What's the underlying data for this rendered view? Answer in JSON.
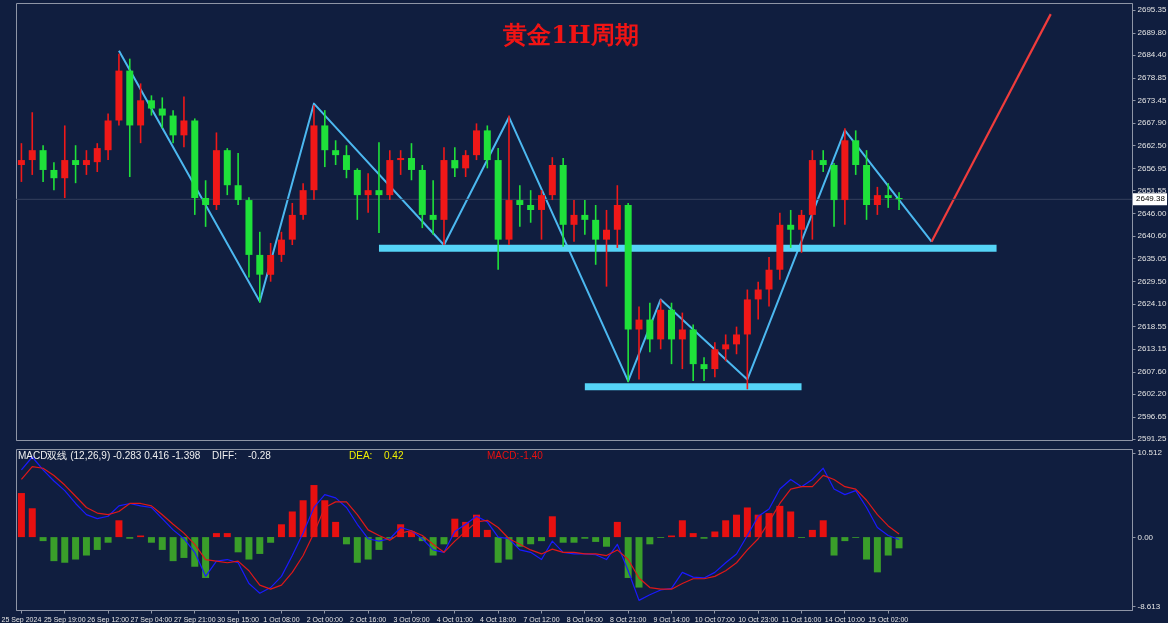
{
  "chart_data": [
    {
      "type": "candlestick",
      "title": "黄金1H周期",
      "categories": [
        null,
        null,
        null,
        null,
        null,
        null,
        null,
        null,
        null,
        null,
        null,
        null,
        null,
        null,
        null,
        null,
        null,
        null,
        null,
        null,
        null,
        null,
        null,
        null,
        null,
        null,
        null,
        null,
        null,
        null,
        null,
        null,
        null,
        null,
        null,
        null,
        null,
        null,
        null,
        null,
        null,
        null,
        null,
        null,
        null,
        null,
        null,
        null,
        null,
        null,
        null,
        null,
        null,
        null,
        null,
        null,
        null,
        null,
        null,
        null,
        null,
        null,
        null,
        null,
        null,
        null,
        null,
        null,
        null,
        null,
        null,
        null,
        null,
        null,
        null,
        null,
        null,
        null,
        null,
        null,
        null,
        null,
        null,
        null,
        null,
        null,
        null,
        null,
        null,
        null,
        null,
        null,
        null,
        null,
        null,
        null,
        null,
        null,
        null,
        null,
        null,
        null,
        null
      ],
      "ohlc": [
        [
          2657.7,
          2663.0,
          2653.6,
          2658.9
        ],
        [
          2658.9,
          2670.5,
          2655.3,
          2661.3
        ],
        [
          2661.3,
          2662.5,
          2653.6,
          2656.5
        ],
        [
          2656.5,
          2658.4,
          2651.6,
          2654.5
        ],
        [
          2654.5,
          2667.3,
          2649.7,
          2658.9
        ],
        [
          2658.9,
          2662.5,
          2653.3,
          2657.7
        ],
        [
          2657.7,
          2661.3,
          2655.3,
          2658.9
        ],
        [
          2658.4,
          2663.0,
          2656.0,
          2661.8
        ],
        [
          2661.3,
          2670.2,
          2658.9,
          2668.5
        ],
        [
          2668.5,
          2684.7,
          2667.3,
          2680.6
        ],
        [
          2680.6,
          2683.5,
          2654.8,
          2667.3
        ],
        [
          2667.3,
          2677.5,
          2663.0,
          2673.4
        ],
        [
          2673.4,
          2674.6,
          2669.7,
          2671.4
        ],
        [
          2671.4,
          2674.1,
          2666.6,
          2669.7
        ],
        [
          2669.7,
          2671.0,
          2663.0,
          2664.9
        ],
        [
          2664.9,
          2674.3,
          2662.0,
          2668.5
        ],
        [
          2668.5,
          2669.0,
          2645.6,
          2649.7
        ],
        [
          2649.7,
          2654.0,
          2642.7,
          2648.0
        ],
        [
          2648.0,
          2665.6,
          2646.8,
          2661.3
        ],
        [
          2661.3,
          2661.8,
          2650.4,
          2652.8
        ],
        [
          2652.8,
          2660.6,
          2648.0,
          2649.2
        ],
        [
          2649.2,
          2649.9,
          2630.4,
          2635.9
        ],
        [
          2635.9,
          2641.5,
          2624.3,
          2631.1
        ],
        [
          2631.1,
          2638.8,
          2629.4,
          2635.9
        ],
        [
          2635.9,
          2641.5,
          2634.2,
          2639.6
        ],
        [
          2639.6,
          2648.5,
          2638.3,
          2645.6
        ],
        [
          2645.6,
          2653.3,
          2644.4,
          2651.6
        ],
        [
          2651.6,
          2672.2,
          2649.2,
          2667.3
        ],
        [
          2667.3,
          2671.0,
          2657.2,
          2661.3
        ],
        [
          2661.3,
          2663.7,
          2657.7,
          2660.1
        ],
        [
          2660.1,
          2662.5,
          2654.5,
          2656.5
        ],
        [
          2656.5,
          2656.9,
          2644.4,
          2650.4
        ],
        [
          2650.4,
          2655.7,
          2646.1,
          2651.6
        ],
        [
          2651.6,
          2663.2,
          2641.2,
          2650.4
        ],
        [
          2650.4,
          2661.3,
          2649.2,
          2658.9
        ],
        [
          2658.9,
          2661.3,
          2655.3,
          2659.4
        ],
        [
          2659.4,
          2663.0,
          2654.0,
          2656.5
        ],
        [
          2656.5,
          2657.7,
          2642.4,
          2645.6
        ],
        [
          2645.6,
          2654.0,
          2640.8,
          2644.4
        ],
        [
          2644.4,
          2662.0,
          2638.3,
          2658.9
        ],
        [
          2658.9,
          2662.0,
          2654.8,
          2656.9
        ],
        [
          2656.9,
          2661.3,
          2654.8,
          2660.1
        ],
        [
          2660.1,
          2667.8,
          2658.9,
          2666.1
        ],
        [
          2666.1,
          2667.3,
          2656.9,
          2658.9
        ],
        [
          2658.9,
          2661.8,
          2632.3,
          2639.6
        ],
        [
          2639.6,
          2669.7,
          2638.3,
          2649.2
        ],
        [
          2649.2,
          2652.8,
          2642.7,
          2648.0
        ],
        [
          2648.0,
          2651.6,
          2643.7,
          2646.8
        ],
        [
          2646.8,
          2651.6,
          2639.6,
          2650.4
        ],
        [
          2650.4,
          2659.6,
          2649.2,
          2657.7
        ],
        [
          2657.7,
          2659.4,
          2637.9,
          2643.2
        ],
        [
          2643.2,
          2649.2,
          2639.1,
          2645.6
        ],
        [
          2645.6,
          2649.2,
          2640.8,
          2644.4
        ],
        [
          2644.4,
          2648.0,
          2633.5,
          2639.6
        ],
        [
          2639.6,
          2646.8,
          2628.2,
          2642.0
        ],
        [
          2642.0,
          2652.8,
          2637.6,
          2648.0
        ],
        [
          2648.0,
          2648.5,
          2605.0,
          2617.8
        ],
        [
          2617.8,
          2623.4,
          2605.7,
          2620.2
        ],
        [
          2620.2,
          2624.3,
          2612.3,
          2615.4
        ],
        [
          2615.4,
          2625.1,
          2613.0,
          2622.6
        ],
        [
          2622.6,
          2624.3,
          2609.4,
          2615.4
        ],
        [
          2615.4,
          2621.9,
          2608.2,
          2617.8
        ],
        [
          2617.8,
          2619.0,
          2605.3,
          2609.4
        ],
        [
          2609.4,
          2611.1,
          2605.3,
          2608.2
        ],
        [
          2608.2,
          2614.7,
          2606.2,
          2613.0
        ],
        [
          2613.0,
          2616.6,
          2610.1,
          2614.2
        ],
        [
          2614.2,
          2618.5,
          2611.8,
          2616.6
        ],
        [
          2616.6,
          2627.5,
          2603.3,
          2625.1
        ],
        [
          2625.1,
          2629.4,
          2620.2,
          2627.5
        ],
        [
          2627.5,
          2635.4,
          2623.4,
          2632.3
        ],
        [
          2632.3,
          2646.1,
          2629.9,
          2643.2
        ],
        [
          2643.2,
          2646.8,
          2637.6,
          2642.0
        ],
        [
          2642.0,
          2646.8,
          2636.4,
          2645.6
        ],
        [
          2645.6,
          2661.3,
          2639.6,
          2658.9
        ],
        [
          2658.9,
          2661.3,
          2656.0,
          2657.7
        ],
        [
          2657.7,
          2658.2,
          2642.7,
          2649.2
        ],
        [
          2649.2,
          2666.6,
          2643.2,
          2663.7
        ],
        [
          2663.7,
          2666.1,
          2655.3,
          2657.7
        ],
        [
          2657.7,
          2661.3,
          2644.4,
          2648.0
        ],
        [
          2648.0,
          2652.4,
          2645.6,
          2650.4
        ],
        [
          2650.4,
          2653.3,
          2647.3,
          2649.7
        ],
        [
          2649.7,
          2651.1,
          2646.8,
          2649.4
        ],
        null,
        null,
        null,
        null,
        null,
        null,
        null,
        null,
        null,
        null,
        null,
        null,
        null,
        null,
        null,
        null,
        null,
        null,
        null,
        null,
        null
      ],
      "colors": [
        "#f01818",
        "#f01818",
        "#1fe13a",
        "#1fe13a",
        "#f01818",
        "#1fe13a",
        "#f01818",
        "#f01818",
        "#f01818",
        "#f01818",
        "#1fe13a",
        "#f01818",
        "#1fe13a",
        "#1fe13a",
        "#1fe13a",
        "#f01818",
        "#1fe13a",
        "#1fe13a",
        "#f01818",
        "#1fe13a",
        "#1fe13a",
        "#1fe13a",
        "#1fe13a",
        "#f01818",
        "#f01818",
        "#f01818",
        "#f01818",
        "#f01818",
        "#1fe13a",
        "#1fe13a",
        "#1fe13a",
        "#1fe13a",
        "#f01818",
        "#1fe13a",
        "#f01818",
        "#f01818",
        "#1fe13a",
        "#1fe13a",
        "#1fe13a",
        "#f01818",
        "#1fe13a",
        "#f01818",
        "#f01818",
        "#1fe13a",
        "#1fe13a",
        "#f01818",
        "#1fe13a",
        "#1fe13a",
        "#f01818",
        "#f01818",
        "#1fe13a",
        "#f01818",
        "#1fe13a",
        "#1fe13a",
        "#f01818",
        "#f01818",
        "#1fe13a",
        "#f01818",
        "#1fe13a",
        "#f01818",
        "#1fe13a",
        "#f01818",
        "#1fe13a",
        "#1fe13a",
        "#f01818",
        "#f01818",
        "#f01818",
        "#f01818",
        "#f01818",
        "#f01818",
        "#f01818",
        "#1fe13a",
        "#f01818",
        "#f01818",
        "#1fe13a",
        "#1fe13a",
        "#f01818",
        "#1fe13a",
        "#1fe13a",
        "#f01818",
        "#1fe13a",
        "#1fe13a",
        null,
        null,
        null,
        null,
        null,
        null,
        null,
        null,
        null,
        null,
        null,
        null,
        null,
        null,
        null,
        null,
        null,
        null,
        null,
        null,
        null
      ],
      "series": [
        {
          "type": "line",
          "color": "#4cb8f0",
          "values": [
            null,
            null,
            null,
            null,
            null,
            null,
            null,
            null,
            null,
            2685.4,
            null,
            null,
            null,
            null,
            null,
            null,
            null,
            null,
            null,
            null,
            null,
            null,
            2624.6,
            null,
            null,
            null,
            null,
            2672.6,
            null,
            null,
            null,
            null,
            null,
            null,
            null,
            null,
            null,
            null,
            null,
            2638.3,
            null,
            null,
            null,
            null,
            null,
            2669.3,
            null,
            null,
            null,
            null,
            null,
            null,
            null,
            null,
            null,
            null,
            2605.3,
            null,
            null,
            2625.1,
            null,
            null,
            null,
            null,
            null,
            null,
            null,
            2605.7,
            null,
            null,
            null,
            null,
            null,
            null,
            null,
            null,
            2666.1,
            null,
            null,
            null,
            null,
            null,
            null,
            null,
            2639.1,
            null,
            null,
            null,
            null,
            null,
            null,
            null,
            null,
            null,
            null,
            null,
            null,
            null,
            null,
            null,
            null,
            null,
            null
          ]
        },
        {
          "type": "line",
          "color": "#55d4f7",
          "values": [
            null,
            null,
            null,
            null,
            null,
            null,
            null,
            null,
            null,
            null,
            null,
            null,
            null,
            null,
            null,
            null,
            null,
            null,
            null,
            null,
            null,
            null,
            null,
            null,
            null,
            null,
            null,
            null,
            null,
            null,
            null,
            null,
            null,
            2637.5,
            2637.5,
            2637.5,
            2637.5,
            2637.5,
            2637.5,
            2637.5,
            2637.5,
            2637.5,
            2637.5,
            2637.5,
            2637.5,
            2637.5,
            2637.5,
            2637.5,
            2637.5,
            2637.5,
            2637.5,
            2637.5,
            2637.5,
            2637.5,
            2637.5,
            2637.5,
            2637.5,
            2637.5,
            2637.5,
            2637.5,
            2637.5,
            2637.5,
            2637.5,
            2637.5,
            2637.5,
            2637.5,
            2637.5,
            2637.5,
            2637.5,
            2637.5,
            2637.5,
            2637.5,
            2637.5,
            2637.5,
            2637.5,
            2637.5,
            2637.5,
            2637.5,
            2637.5,
            2637.5,
            2637.5,
            2637.5,
            2637.5,
            2637.5,
            2637.5,
            2637.5,
            2637.5,
            2637.5,
            2637.5,
            2637.5,
            2637.5,
            null,
            null,
            null,
            null,
            null,
            null,
            null,
            null,
            null,
            null,
            null,
            null
          ]
        },
        {
          "type": "line",
          "color": "#55d4f7",
          "values": [
            null,
            null,
            null,
            null,
            null,
            null,
            null,
            null,
            null,
            null,
            null,
            null,
            null,
            null,
            null,
            null,
            null,
            null,
            null,
            null,
            null,
            null,
            null,
            null,
            null,
            null,
            null,
            null,
            null,
            null,
            null,
            null,
            null,
            null,
            null,
            null,
            null,
            null,
            null,
            null,
            null,
            null,
            null,
            null,
            null,
            null,
            null,
            null,
            null,
            null,
            null,
            null,
            2603.9,
            2603.9,
            2603.9,
            2603.9,
            2603.9,
            2603.9,
            2603.9,
            2603.9,
            2603.9,
            2603.9,
            2603.9,
            2603.9,
            2603.9,
            2603.9,
            2603.9,
            2603.9,
            2603.9,
            2603.9,
            2603.9,
            2603.9,
            2603.9,
            null,
            null,
            null,
            null,
            null,
            null,
            null,
            null,
            null,
            null,
            null,
            null,
            null,
            null,
            null,
            null,
            null,
            null,
            null,
            null,
            null,
            null,
            null,
            null,
            null,
            null,
            null,
            null,
            null,
            null
          ]
        },
        {
          "type": "line",
          "color": "#f03c3c",
          "values": [
            null,
            null,
            null,
            null,
            null,
            null,
            null,
            null,
            null,
            null,
            null,
            null,
            null,
            null,
            null,
            null,
            null,
            null,
            null,
            null,
            null,
            null,
            null,
            null,
            null,
            null,
            null,
            null,
            null,
            null,
            null,
            null,
            null,
            null,
            null,
            null,
            null,
            null,
            null,
            null,
            null,
            null,
            null,
            null,
            null,
            null,
            null,
            null,
            null,
            null,
            null,
            null,
            null,
            null,
            null,
            null,
            null,
            null,
            null,
            null,
            null,
            null,
            null,
            null,
            null,
            null,
            null,
            null,
            null,
            null,
            null,
            null,
            null,
            null,
            null,
            null,
            null,
            null,
            null,
            null,
            null,
            null,
            null,
            null,
            2639.1,
            null,
            null,
            null,
            null,
            null,
            null,
            null,
            null,
            null,
            null,
            2694.3,
            null,
            null,
            null,
            null,
            null,
            null,
            null
          ]
        }
      ],
      "ref_lines": [
        {
          "axis": "y",
          "value": 2649.38,
          "label": "2649.38",
          "color": "#34405e"
        }
      ],
      "ylim": [
        2591.0,
        2697.0
      ],
      "yticks": [
        2695.35,
        {
          "value": 2689.8,
          "label": "2689.80"
        },
        {
          "value": 2684.4,
          "label": "2684.40"
        },
        2678.85,
        2673.45,
        {
          "value": 2667.9,
          "label": "2667.90"
        },
        {
          "value": 2662.5,
          "label": "2662.50"
        },
        2656.95,
        2651.55,
        {
          "value": 2646,
          "label": "2646.00"
        },
        {
          "value": 2640.6,
          "label": "2640.60"
        },
        2635.05,
        {
          "value": 2629.5,
          "label": "2629.50"
        },
        {
          "value": 2624.1,
          "label": "2624.10"
        },
        2618.55,
        2613.15,
        {
          "value": 2607.6,
          "label": "2607.60"
        },
        {
          "value": 2602.2,
          "label": "2602.20"
        },
        2596.65,
        2591.25
      ]
    },
    {
      "type": "bar",
      "categories": [
        "25 Sep 2024",
        null,
        null,
        null,
        "25 Sep 19:00",
        null,
        null,
        null,
        "26 Sep 12:00",
        null,
        null,
        null,
        "27 Sep 04:00",
        null,
        null,
        null,
        "27 Sep 21:00",
        null,
        null,
        null,
        "30 Sep 15:00",
        null,
        null,
        null,
        "1 Oct 08:00",
        null,
        null,
        null,
        "2 Oct 00:00",
        null,
        null,
        null,
        "2 Oct 16:00",
        null,
        null,
        null,
        "3 Oct 09:00",
        null,
        null,
        null,
        "4 Oct 01:00",
        null,
        null,
        null,
        "4 Oct 18:00",
        null,
        null,
        null,
        "7 Oct 12:00",
        null,
        null,
        null,
        "8 Oct 04:00",
        null,
        null,
        null,
        "8 Oct 21:00",
        null,
        null,
        null,
        "9 Oct 14:00",
        null,
        null,
        null,
        "10 Oct 07:00",
        null,
        null,
        null,
        "10 Oct 23:00",
        null,
        null,
        null,
        "11 Oct 16:00",
        null,
        null,
        null,
        "14 Oct 10:00",
        null,
        null,
        null,
        "15 Oct 02:00",
        null,
        null,
        null,
        null,
        null,
        null,
        null,
        null,
        null,
        null,
        null,
        null,
        null,
        null,
        null,
        null,
        null,
        null,
        null,
        null,
        null,
        null
      ],
      "series": [
        {
          "color": "#e81010",
          "values": [
            5.5,
            3.6,
            null,
            null,
            null,
            null,
            null,
            null,
            null,
            2.1,
            null,
            0.2,
            null,
            null,
            null,
            null,
            null,
            null,
            0.5,
            0.5,
            null,
            null,
            null,
            null,
            1.6,
            3.2,
            4.6,
            6.5,
            4.6,
            1.9,
            null,
            null,
            null,
            null,
            null,
            1.6,
            0.7,
            null,
            null,
            null,
            2.3,
            1.9,
            2.8,
            0.9,
            null,
            null,
            null,
            null,
            null,
            2.6,
            null,
            null,
            null,
            null,
            null,
            1.9,
            null,
            null,
            null,
            null,
            0.2,
            2.1,
            0.5,
            null,
            0.7,
            2.1,
            2.8,
            3.7,
            2.8,
            3.0,
            3.9,
            3.2,
            null,
            0.9,
            2.1,
            null,
            null,
            null,
            null,
            null,
            null,
            null,
            null,
            null,
            null,
            null,
            null,
            null,
            null,
            null,
            null,
            null,
            null,
            null,
            null,
            null,
            null,
            null,
            null,
            null,
            null,
            null,
            null
          ]
        },
        {
          "color": "#3a9e2a",
          "values": [
            null,
            null,
            -0.5,
            -3.0,
            -3.2,
            -2.8,
            -2.3,
            -1.6,
            -0.7,
            null,
            -0.2,
            null,
            -0.7,
            -1.6,
            -3.0,
            -2.6,
            -3.7,
            -5.1,
            null,
            null,
            -1.9,
            -2.8,
            -2.1,
            -0.7,
            null,
            null,
            null,
            null,
            null,
            null,
            -0.9,
            -3.2,
            -2.8,
            -1.6,
            -0.2,
            null,
            null,
            -0.5,
            -2.3,
            -0.9,
            null,
            null,
            null,
            null,
            -3.2,
            -2.8,
            -1.2,
            -0.9,
            -0.5,
            null,
            -0.7,
            -0.7,
            -0.2,
            -0.6,
            -1.2,
            null,
            -5.1,
            -6.3,
            -0.9,
            -0.1,
            null,
            null,
            null,
            -0.2,
            null,
            null,
            null,
            null,
            null,
            null,
            null,
            null,
            -0.1,
            null,
            null,
            -2.3,
            -0.5,
            -0.1,
            -2.8,
            -4.4,
            -2.3,
            -1.4,
            null,
            null,
            null,
            null,
            null,
            null,
            null,
            null,
            null,
            null,
            null,
            null,
            null,
            null,
            null,
            null,
            null,
            null,
            null,
            null,
            null
          ]
        },
        {
          "type": "line",
          "color": "#1a1aff",
          "values": [
            8.4,
            10.0,
            8.4,
            7.0,
            5.8,
            4.2,
            2.8,
            2.3,
            2.6,
            3.9,
            4.2,
            3.9,
            3.7,
            2.3,
            0.9,
            -0.2,
            -1.9,
            -4.9,
            -3.0,
            -2.8,
            -3.2,
            -5.8,
            -7.0,
            -6.3,
            -4.9,
            -2.3,
            0.5,
            3.7,
            5.3,
            4.9,
            3.7,
            1.6,
            -0.2,
            -0.5,
            -0.2,
            1.2,
            0.8,
            -0.2,
            -1.6,
            -1.9,
            0.7,
            1.6,
            2.6,
            1.9,
            0.0,
            -0.2,
            -1.6,
            -1.9,
            -2.8,
            -0.5,
            -1.9,
            -2.1,
            -2.1,
            -2.2,
            -2.8,
            -0.9,
            -4.2,
            -7.9,
            -7.2,
            -6.6,
            -6.4,
            -4.4,
            -5.0,
            -5.1,
            -4.4,
            -3.2,
            -2.1,
            0.2,
            2.6,
            3.5,
            6.0,
            7.2,
            6.3,
            7.2,
            8.6,
            6.0,
            5.3,
            5.8,
            3.7,
            1.2,
            0.2,
            -0.3,
            null,
            null,
            null,
            null,
            null,
            null,
            null,
            null,
            null,
            null,
            null,
            null,
            null,
            null,
            null,
            null,
            null,
            null,
            null,
            null,
            null
          ]
        },
        {
          "type": "line",
          "color": "#e01818",
          "values": [
            7.2,
            8.8,
            8.6,
            7.7,
            6.5,
            5.1,
            3.7,
            3.0,
            2.8,
            3.2,
            4.2,
            4.2,
            3.9,
            2.8,
            1.6,
            0.5,
            -0.9,
            -2.8,
            -3.0,
            -3.2,
            -3.0,
            -4.2,
            -6.0,
            -6.5,
            -6.0,
            -4.4,
            -2.3,
            0.5,
            3.7,
            4.4,
            4.4,
            2.8,
            0.9,
            0.2,
            -0.4,
            0.5,
            0.8,
            0.2,
            -0.9,
            -1.9,
            -0.5,
            0.7,
            1.9,
            2.1,
            1.2,
            -0.2,
            -0.9,
            -1.6,
            -2.1,
            -1.5,
            -1.9,
            -1.9,
            -2.1,
            -2.1,
            -2.3,
            -1.6,
            -2.8,
            -5.1,
            -6.3,
            -6.5,
            -6.5,
            -5.8,
            -5.2,
            -5.2,
            -4.9,
            -4.2,
            -3.2,
            -1.6,
            -0.2,
            1.9,
            4.2,
            6.0,
            6.3,
            6.3,
            7.7,
            7.2,
            6.3,
            6.0,
            4.6,
            2.8,
            1.4,
            0.4,
            null,
            null,
            null,
            null,
            null,
            null,
            null,
            null,
            null,
            null,
            null,
            null,
            null,
            null,
            null,
            null,
            null,
            null,
            null,
            null,
            null
          ]
        }
      ],
      "ylim": [
        -9.1,
        11.0
      ],
      "yticks": [
        10.512,
        {
          "value": 0,
          "label": "0.00"
        },
        -8.613
      ],
      "annotations": [
        "MACD双线 (12,26,9) -0.283 0.416 -1.398",
        "DIFF:",
        "-0.28",
        "DEA:",
        "0.42",
        "MACD:",
        "-1.40"
      ]
    }
  ]
}
